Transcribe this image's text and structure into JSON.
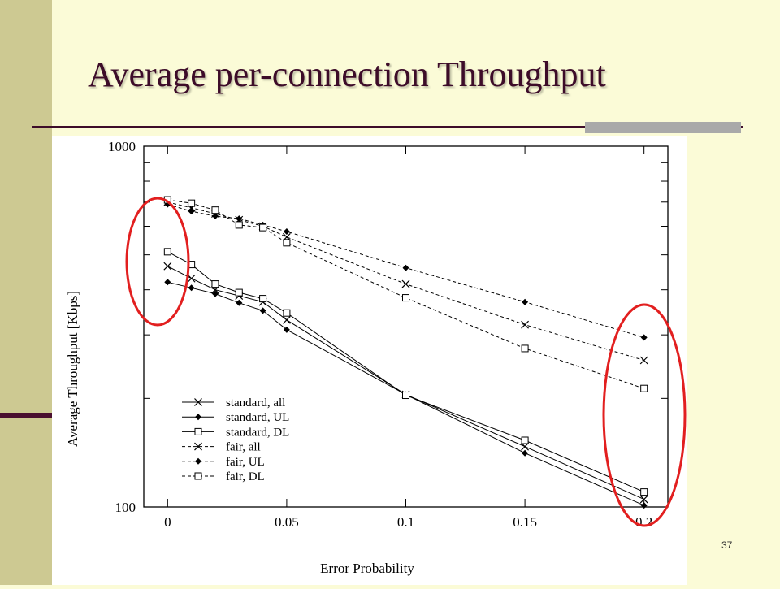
{
  "slide": {
    "title": "Average per-connection Throughput",
    "page_number": "37"
  },
  "colors": {
    "background": "#fbfbd7",
    "band": "#cdc992",
    "title": "#3d0c29",
    "highlight": "#e21f1f"
  },
  "chart_data": {
    "type": "line",
    "title": "",
    "xlabel": "Error Probability",
    "ylabel": "Average Throughput [Kbps]",
    "xlim": [
      -0.01,
      0.21
    ],
    "ylim": [
      100,
      1000
    ],
    "yscale": "log",
    "x_ticks": [
      0,
      0.05,
      0.1,
      0.15,
      0.2
    ],
    "x_tick_labels": [
      "0",
      "0.05",
      "0.1",
      "0.15",
      "0.2"
    ],
    "y_ticks": [
      100,
      1000
    ],
    "y_tick_labels": [
      "100",
      "1000"
    ],
    "grid": false,
    "legend_position": "bottom-left",
    "x": [
      0,
      0.01,
      0.02,
      0.03,
      0.04,
      0.05,
      0.1,
      0.15,
      0.2
    ],
    "series": [
      {
        "name": "standard, all",
        "marker": "x",
        "dash": "solid",
        "values": [
          465,
          430,
          400,
          385,
          370,
          330,
          205,
          147,
          105
        ]
      },
      {
        "name": "standard, UL",
        "marker": "diamond",
        "dash": "solid",
        "values": [
          420,
          405,
          390,
          368,
          350,
          310,
          205,
          141,
          101
        ]
      },
      {
        "name": "standard, DL",
        "marker": "square",
        "dash": "solid",
        "values": [
          510,
          470,
          415,
          393,
          378,
          345,
          204,
          153,
          110
        ]
      },
      {
        "name": "fair, all",
        "marker": "x",
        "dash": "dashed",
        "values": [
          700,
          675,
          650,
          625,
          600,
          560,
          415,
          320,
          255
        ]
      },
      {
        "name": "fair, UL",
        "marker": "diamond",
        "dash": "dashed",
        "values": [
          690,
          660,
          640,
          630,
          605,
          580,
          460,
          370,
          295
        ]
      },
      {
        "name": "fair, DL",
        "marker": "square",
        "dash": "dashed",
        "values": [
          710,
          695,
          665,
          605,
          595,
          540,
          380,
          275,
          213
        ]
      }
    ],
    "annotations": [
      {
        "type": "ellipse",
        "around_x": 0,
        "color": "#e21f1f"
      },
      {
        "type": "ellipse",
        "around_x": 0.2,
        "color": "#e21f1f"
      }
    ]
  }
}
